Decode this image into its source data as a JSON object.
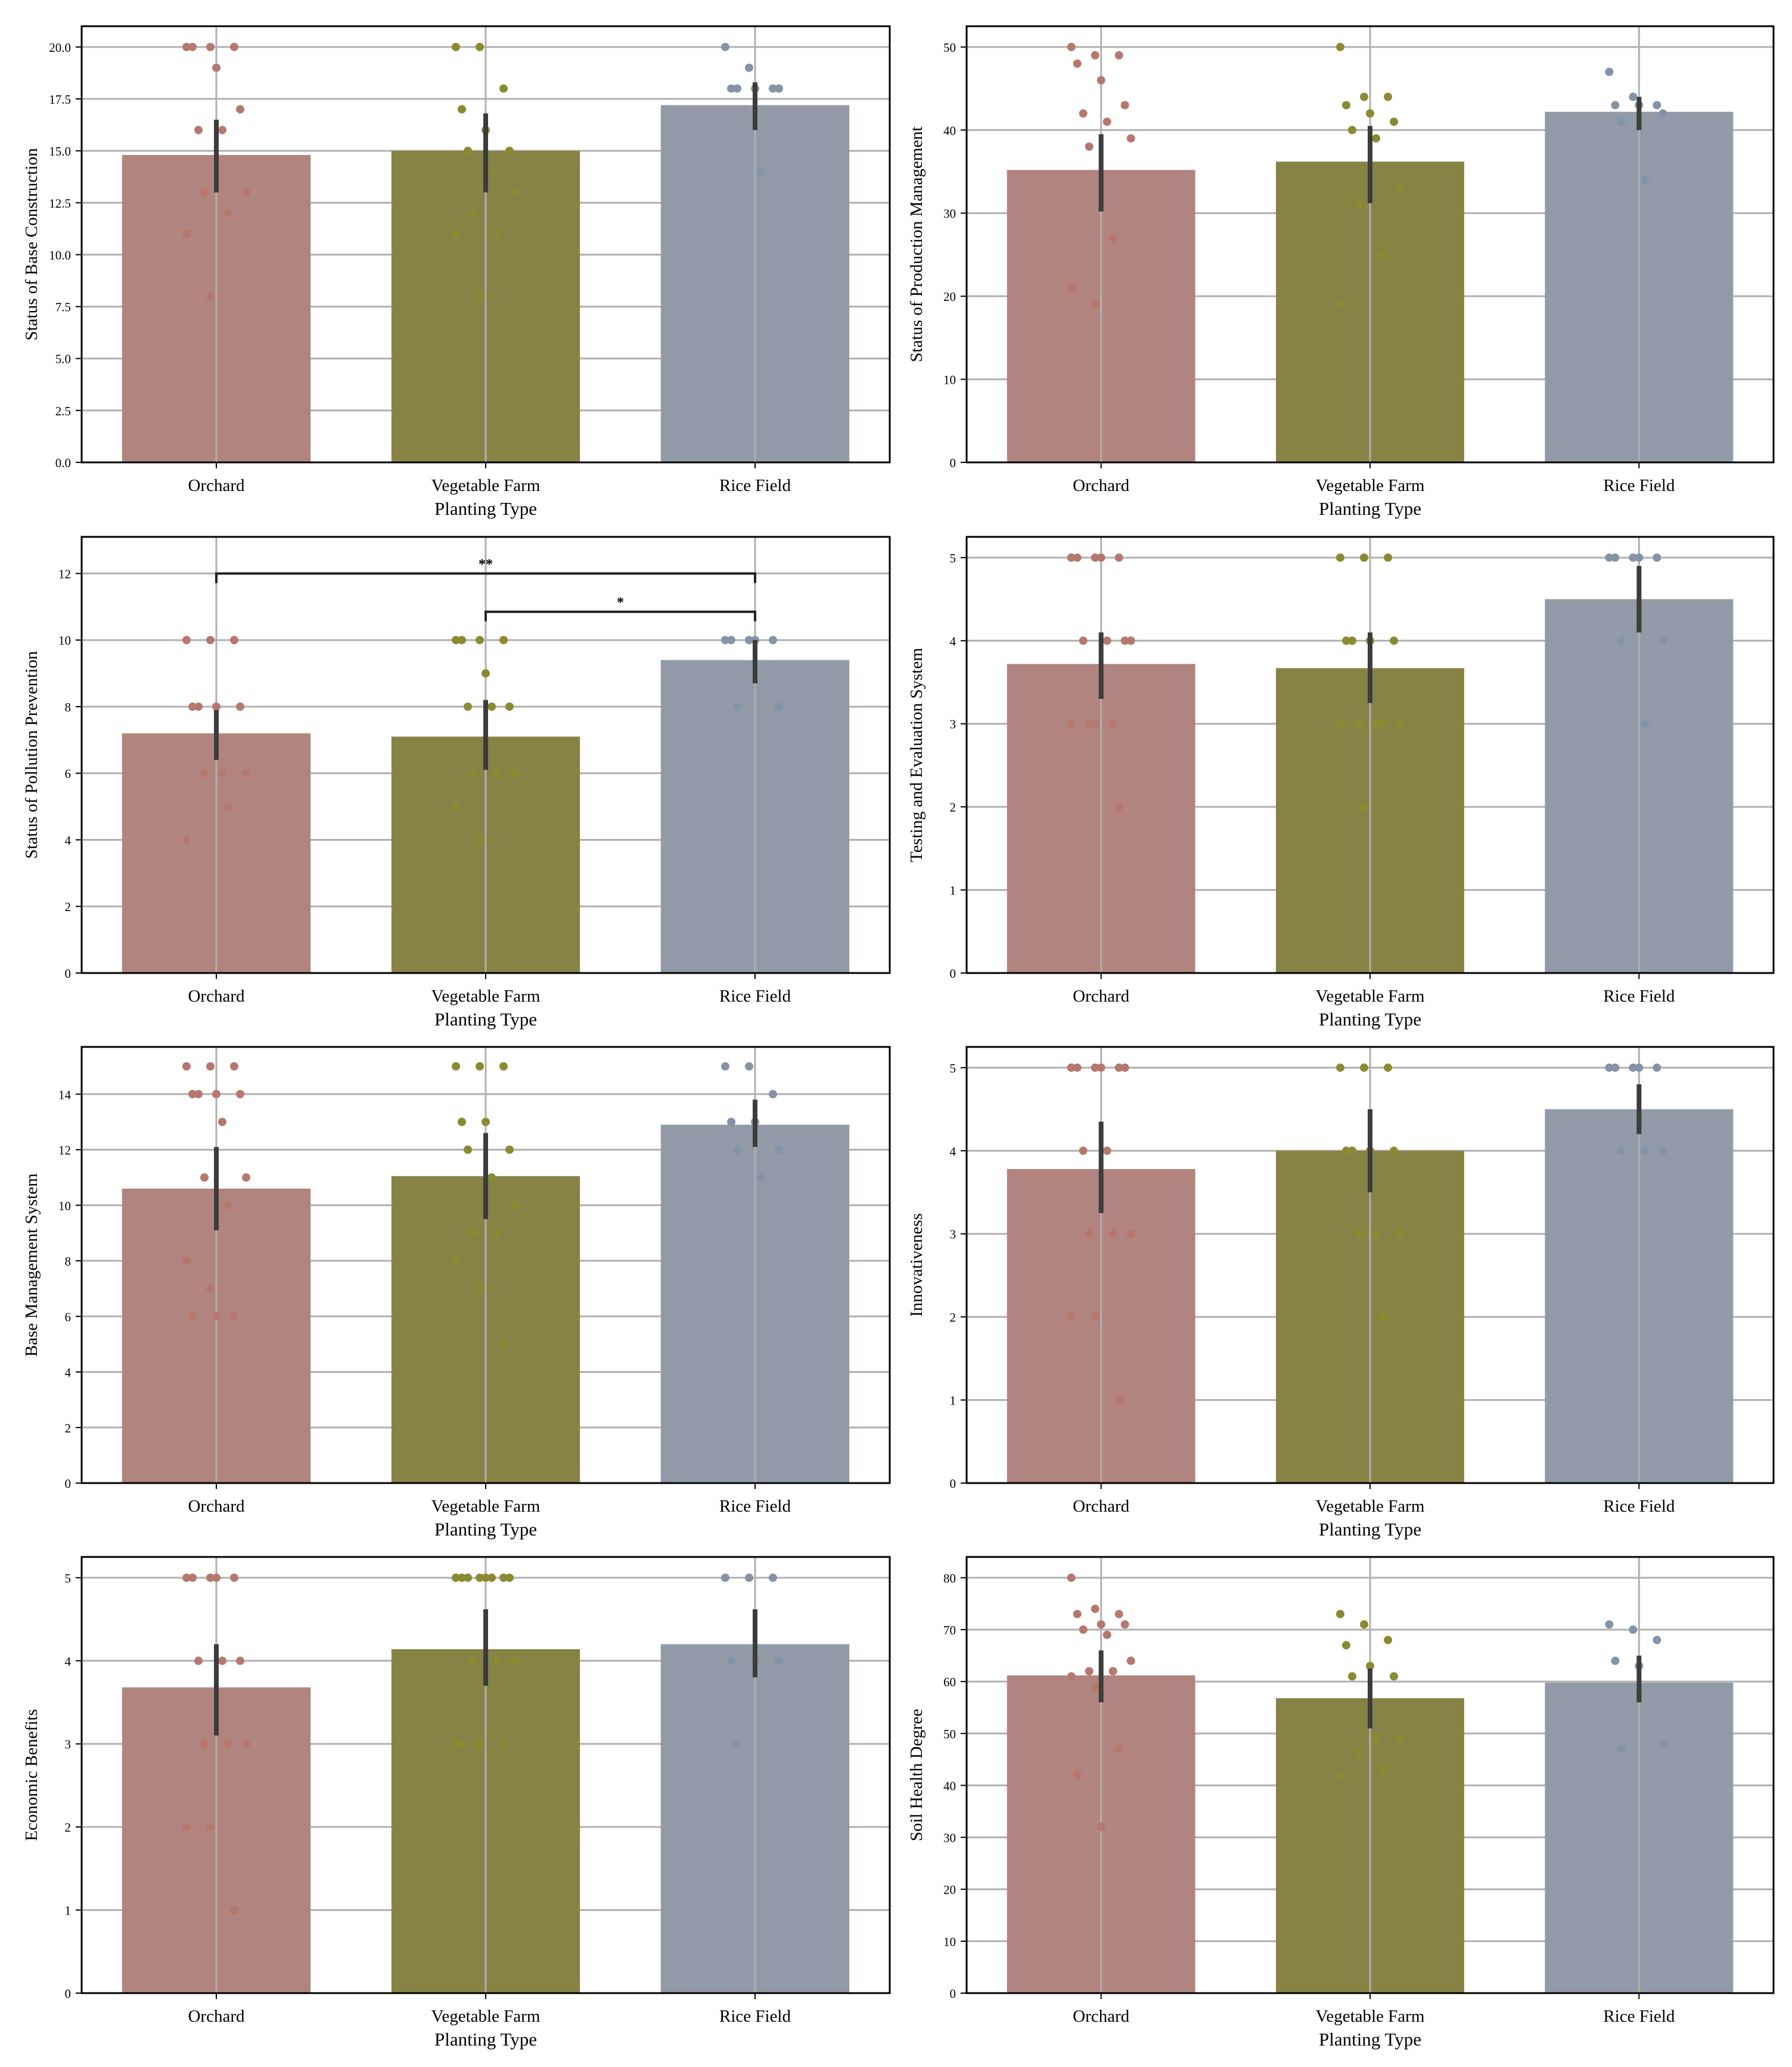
{
  "colors": {
    "orchard": "#b2847f",
    "vegetable": "#878345",
    "rice": "#939aa7",
    "orchard_dot": "#b5786f",
    "vegetable_dot": "#8a8a32",
    "rice_dot": "#8593a6",
    "errbar": "#3c3c3c",
    "grid": "#b0b0b0"
  },
  "chart_data": [
    {
      "type": "bar",
      "title": "",
      "xlabel": "Planting Type",
      "ylabel": "Status of Base Construction",
      "categories": [
        "Orchard",
        "Vegetable Farm",
        "Rice Field"
      ],
      "values": [
        14.8,
        15.0,
        17.2
      ],
      "ci": [
        [
          13.0,
          16.5
        ],
        [
          13.0,
          16.8
        ],
        [
          16.0,
          18.3
        ]
      ],
      "ylim": [
        0,
        21
      ],
      "yticks": [
        "0.0",
        "2.5",
        "5.0",
        "7.5",
        "10.0",
        "12.5",
        "15.0",
        "17.5",
        "20.0"
      ],
      "ytick_step": 2.5,
      "points": [
        [
          20,
          20,
          20,
          20,
          19,
          17,
          16,
          16,
          13,
          13,
          12,
          11,
          8
        ],
        [
          20,
          20,
          18,
          17,
          16,
          15,
          15,
          14,
          13,
          12,
          11,
          11,
          8
        ],
        [
          20,
          19,
          18,
          18,
          18,
          18,
          18,
          14
        ]
      ]
    },
    {
      "type": "bar",
      "title": "",
      "xlabel": "Planting Type",
      "ylabel": "Status of Production Management",
      "categories": [
        "Orchard",
        "Vegetable Farm",
        "Rice Field"
      ],
      "values": [
        35.2,
        36.2,
        42.2
      ],
      "ci": [
        [
          30.2,
          39.5
        ],
        [
          31.2,
          40.5
        ],
        [
          40.0,
          44.0
        ]
      ],
      "ylim": [
        0,
        52.5
      ],
      "yticks": [
        "0",
        "10",
        "20",
        "30",
        "40",
        "50"
      ],
      "ytick_step": 10,
      "points": [
        [
          50,
          49,
          49,
          48,
          46,
          43,
          42,
          41,
          39,
          38,
          27,
          21,
          19
        ],
        [
          50,
          44,
          44,
          43,
          42,
          41,
          40,
          39,
          33,
          31,
          25,
          19
        ],
        [
          47,
          44,
          43,
          43,
          43,
          42,
          41,
          34
        ]
      ]
    },
    {
      "type": "bar",
      "title": "",
      "xlabel": "Planting Type",
      "ylabel": "Status of Pollution Prevention",
      "categories": [
        "Orchard",
        "Vegetable Farm",
        "Rice Field"
      ],
      "values": [
        7.2,
        7.1,
        9.4
      ],
      "ci": [
        [
          6.4,
          7.9
        ],
        [
          6.1,
          8.2
        ],
        [
          8.7,
          10.0
        ]
      ],
      "ylim": [
        0,
        13.1
      ],
      "yticks": [
        "0",
        "2",
        "4",
        "6",
        "8",
        "10",
        "12"
      ],
      "ytick_step": 2,
      "points": [
        [
          10,
          10,
          10,
          8,
          8,
          8,
          8,
          6,
          6,
          6,
          5,
          4
        ],
        [
          10,
          10,
          10,
          10,
          9,
          8,
          8,
          8,
          6,
          6,
          6,
          5,
          4
        ],
        [
          10,
          10,
          10,
          10,
          10,
          8,
          8
        ]
      ],
      "annotations": [
        {
          "text": "**",
          "from": 0,
          "to": 2,
          "level": 1
        },
        {
          "text": "*",
          "from": 1,
          "to": 2,
          "level": 0
        }
      ]
    },
    {
      "type": "bar",
      "title": "",
      "xlabel": "Planting Type",
      "ylabel": "Testing and Evaluation System",
      "categories": [
        "Orchard",
        "Vegetable Farm",
        "Rice Field"
      ],
      "values": [
        3.72,
        3.67,
        4.5
      ],
      "ci": [
        [
          3.3,
          4.1
        ],
        [
          3.25,
          4.1
        ],
        [
          4.1,
          4.9
        ]
      ],
      "ylim": [
        0,
        5.25
      ],
      "yticks": [
        "0",
        "1",
        "2",
        "3",
        "4",
        "5"
      ],
      "ytick_step": 1,
      "points": [
        [
          5,
          5,
          5,
          5,
          5,
          4,
          4,
          4,
          4,
          3,
          3,
          3,
          3,
          2
        ],
        [
          5,
          5,
          5,
          4,
          4,
          4,
          4,
          3,
          3,
          3,
          3,
          3,
          2
        ],
        [
          5,
          5,
          5,
          5,
          5,
          4,
          4,
          3
        ]
      ]
    },
    {
      "type": "bar",
      "title": "",
      "xlabel": "Planting Type",
      "ylabel": "Base Management System",
      "categories": [
        "Orchard",
        "Vegetable Farm",
        "Rice Field"
      ],
      "values": [
        10.6,
        11.05,
        12.9
      ],
      "ci": [
        [
          9.1,
          12.1
        ],
        [
          9.5,
          12.6
        ],
        [
          12.1,
          13.8
        ]
      ],
      "ylim": [
        0,
        15.7
      ],
      "yticks": [
        "0",
        "2",
        "4",
        "6",
        "8",
        "10",
        "12",
        "14"
      ],
      "ytick_step": 2,
      "points": [
        [
          15,
          15,
          15,
          14,
          14,
          14,
          14,
          13,
          11,
          11,
          10,
          8,
          7,
          6,
          6,
          6
        ],
        [
          15,
          15,
          15,
          13,
          13,
          12,
          12,
          11,
          10,
          9,
          9,
          8,
          7,
          5
        ],
        [
          15,
          15,
          14,
          13,
          13,
          12,
          12,
          11
        ]
      ]
    },
    {
      "type": "bar",
      "title": "",
      "xlabel": "Planting Type",
      "ylabel": "Innovativeness",
      "categories": [
        "Orchard",
        "Vegetable Farm",
        "Rice Field"
      ],
      "values": [
        3.78,
        4.0,
        4.5
      ],
      "ci": [
        [
          3.25,
          4.35
        ],
        [
          3.5,
          4.5
        ],
        [
          4.2,
          4.8
        ]
      ],
      "ylim": [
        0,
        5.25
      ],
      "yticks": [
        "0",
        "1",
        "2",
        "3",
        "4",
        "5"
      ],
      "ytick_step": 1,
      "points": [
        [
          5,
          5,
          5,
          5,
          5,
          5,
          4,
          4,
          3,
          3,
          3,
          2,
          2,
          1
        ],
        [
          5,
          5,
          5,
          4,
          4,
          4,
          4,
          3,
          3,
          3,
          2
        ],
        [
          5,
          5,
          5,
          5,
          5,
          4,
          4,
          4
        ]
      ]
    },
    {
      "type": "bar",
      "title": "",
      "xlabel": "Planting Type",
      "ylabel": "Economic Benefits",
      "categories": [
        "Orchard",
        "Vegetable Farm",
        "Rice Field"
      ],
      "values": [
        3.68,
        4.14,
        4.2
      ],
      "ci": [
        [
          3.1,
          4.2
        ],
        [
          3.7,
          4.62
        ],
        [
          3.8,
          4.62
        ]
      ],
      "ylim": [
        0,
        5.25
      ],
      "yticks": [
        "0",
        "1",
        "2",
        "3",
        "4",
        "5"
      ],
      "ytick_step": 1,
      "points": [
        [
          5,
          5,
          5,
          5,
          5,
          4,
          4,
          4,
          3,
          3,
          3,
          2,
          2,
          1
        ],
        [
          5,
          5,
          5,
          5,
          5,
          5,
          5,
          5,
          4,
          4,
          4,
          3,
          3,
          3,
          3
        ],
        [
          5,
          5,
          5,
          4,
          4,
          4,
          3
        ]
      ]
    },
    {
      "type": "bar",
      "title": "",
      "xlabel": "Planting Type",
      "ylabel": "Soil Health Degree",
      "categories": [
        "Orchard",
        "Vegetable Farm",
        "Rice Field"
      ],
      "values": [
        61.2,
        56.8,
        59.8
      ],
      "ci": [
        [
          56.0,
          66.0
        ],
        [
          51.0,
          62.5
        ],
        [
          56.0,
          65.0
        ]
      ],
      "ylim": [
        0,
        84
      ],
      "yticks": [
        "0",
        "10",
        "20",
        "30",
        "40",
        "50",
        "60",
        "70",
        "80"
      ],
      "ytick_step": 10,
      "points": [
        [
          80,
          74,
          73,
          73,
          71,
          71,
          70,
          69,
          64,
          62,
          62,
          61,
          59,
          47,
          42,
          32
        ],
        [
          73,
          71,
          68,
          67,
          63,
          61,
          61,
          49,
          49,
          46,
          43,
          42
        ],
        [
          71,
          70,
          68,
          64,
          63,
          48,
          47
        ]
      ]
    }
  ]
}
